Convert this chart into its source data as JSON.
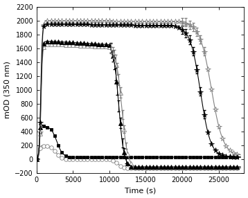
{
  "xlabel": "Time (s)",
  "ylabel": "mOD (350 nm)",
  "xlim": [
    0,
    28500
  ],
  "ylim": [
    -200,
    2200
  ],
  "xticks": [
    0,
    5000,
    10000,
    15000,
    20000,
    25000
  ],
  "yticks": [
    -200,
    0,
    200,
    400,
    600,
    800,
    1000,
    1200,
    1400,
    1600,
    1800,
    2000,
    2200
  ],
  "figsize": [
    3.58,
    2.86
  ],
  "dpi": 100
}
